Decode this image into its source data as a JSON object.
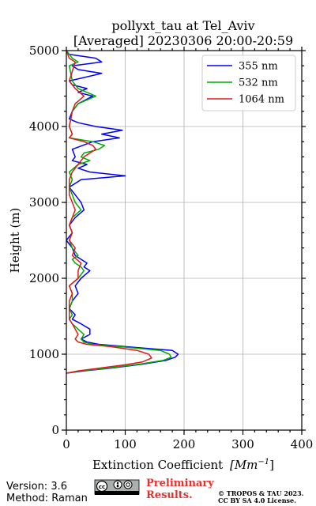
{
  "chart_data": {
    "type": "line",
    "orientation": "vertical-profile",
    "title_line1": "pollyxt_tau at Tel_Aviv",
    "title_line2": "[Averaged] 20230306 20:00-20:59",
    "xlabel": "Extinction Coefficient",
    "xlabel_unit": "Mm^{-1}",
    "ylabel": "Height (m)",
    "xlim": [
      0,
      400
    ],
    "ylim": [
      0,
      5000
    ],
    "x_ticks": [
      "0",
      "100",
      "200",
      "300",
      "400"
    ],
    "y_ticks": [
      "0",
      "1000",
      "2000",
      "3000",
      "4000",
      "5000"
    ],
    "grid": true,
    "legend_position": "top-right",
    "series": [
      {
        "name": "355 nm",
        "color": "#0000ff",
        "height": [
          750,
          780,
          820,
          870,
          920,
          960,
          1000,
          1050,
          1100,
          1130,
          1160,
          1200,
          1260,
          1330,
          1400,
          1460,
          1520,
          1600,
          1700,
          1800,
          1900,
          2000,
          2100,
          2150,
          2200,
          2250,
          2300,
          2400,
          2500,
          2600,
          2700,
          2800,
          2900,
          3000,
          3100,
          3200,
          3300,
          3350,
          3400,
          3450,
          3500,
          3550,
          3600,
          3700,
          3800,
          3850,
          3900,
          3950,
          4000,
          4050,
          4100,
          4200,
          4300,
          4400,
          4450,
          4500,
          4550,
          4600,
          4700,
          4750,
          4800,
          4850,
          4900,
          4950,
          5000
        ],
        "values": [
          0,
          30,
          80,
          130,
          170,
          185,
          190,
          180,
          100,
          55,
          35,
          25,
          40,
          40,
          25,
          10,
          15,
          5,
          10,
          20,
          15,
          25,
          40,
          30,
          35,
          25,
          15,
          10,
          0,
          10,
          5,
          15,
          30,
          25,
          15,
          5,
          25,
          100,
          40,
          20,
          35,
          10,
          15,
          10,
          45,
          90,
          60,
          95,
          50,
          20,
          5,
          10,
          20,
          45,
          20,
          35,
          10,
          5,
          60,
          20,
          10,
          60,
          50,
          5,
          0
        ]
      },
      {
        "name": "532 nm",
        "color": "#00aa00",
        "height": [
          750,
          780,
          820,
          870,
          920,
          960,
          1000,
          1050,
          1100,
          1130,
          1160,
          1200,
          1260,
          1330,
          1400,
          1460,
          1520,
          1600,
          1700,
          1800,
          1900,
          2000,
          2100,
          2150,
          2200,
          2250,
          2300,
          2400,
          2500,
          2600,
          2700,
          2800,
          2900,
          3000,
          3100,
          3200,
          3300,
          3400,
          3500,
          3550,
          3600,
          3650,
          3700,
          3750,
          3800,
          3850,
          3900,
          4000,
          4200,
          4300,
          4400,
          4450,
          4500,
          4600,
          4800,
          4850,
          4900,
          5000
        ],
        "values": [
          0,
          25,
          75,
          125,
          165,
          178,
          175,
          160,
          90,
          45,
          30,
          25,
          30,
          20,
          10,
          5,
          10,
          5,
          10,
          10,
          5,
          20,
          30,
          25,
          15,
          10,
          20,
          10,
          5,
          10,
          5,
          10,
          25,
          15,
          10,
          5,
          10,
          5,
          20,
          40,
          25,
          30,
          55,
          65,
          45,
          5,
          10,
          5,
          10,
          20,
          50,
          35,
          20,
          10,
          5,
          20,
          10,
          0
        ]
      },
      {
        "name": "1064 nm",
        "color": "#dd1c1c",
        "height": [
          750,
          780,
          820,
          860,
          900,
          950,
          1000,
          1050,
          1100,
          1130,
          1160,
          1200,
          1260,
          1330,
          1400,
          1460,
          1520,
          1600,
          1700,
          1800,
          1900,
          2000,
          2100,
          2200,
          2300,
          2400,
          2500,
          2600,
          2700,
          2800,
          2900,
          3000,
          3100,
          3200,
          3300,
          3400,
          3500,
          3600,
          3700,
          3750,
          3800,
          3850,
          3900,
          4000,
          4200,
          4300,
          4400,
          4500,
          4600,
          4850,
          4900,
          5000
        ],
        "values": [
          0,
          20,
          60,
          100,
          130,
          145,
          140,
          120,
          75,
          35,
          20,
          15,
          20,
          15,
          10,
          5,
          5,
          5,
          5,
          10,
          5,
          20,
          20,
          25,
          10,
          15,
          5,
          10,
          5,
          10,
          15,
          10,
          5,
          5,
          5,
          10,
          20,
          30,
          50,
          45,
          30,
          5,
          10,
          5,
          10,
          15,
          30,
          15,
          5,
          15,
          5,
          0
        ]
      }
    ]
  },
  "footer": {
    "version": "Version: 3.6",
    "method": "Method: Raman",
    "preliminary_line1": "Preliminary",
    "preliminary_line2": "Results.",
    "copyright_line1": "© TROPOS & TAU 2023.",
    "copyright_line2": "CC BY SA 4.0 License.",
    "license_badge": "cc-by-sa-badge"
  }
}
